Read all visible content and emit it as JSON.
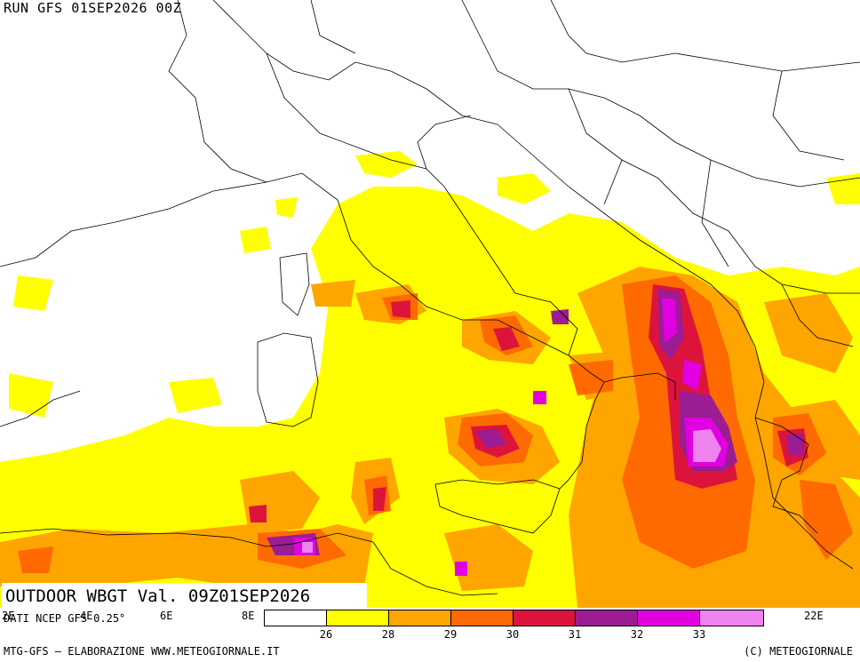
{
  "header": {
    "run_title": "RUN GFS 01SEP2026 00Z"
  },
  "product": {
    "title": "OUTDOOR WBGT Val. 09Z01SEP2026"
  },
  "source": {
    "text": "DATI NCEP GFS 0.25°"
  },
  "longitude_labels": [
    "2E",
    "4E",
    "6E",
    "8E",
    "22E"
  ],
  "legend": {
    "colors": [
      "#ffffff",
      "#ffff00",
      "#ffa500",
      "#ff6a00",
      "#dc143c",
      "#9b1c93",
      "#e100e1",
      "#ee82ee"
    ],
    "labels": [
      "26",
      "28",
      "29",
      "30",
      "31",
      "32",
      "33"
    ]
  },
  "footer": {
    "left": "MTG-GFS — ELABORAZIONE WWW.METEOGIORNALE.IT",
    "right": "(C) METEOGIORNALE"
  }
}
